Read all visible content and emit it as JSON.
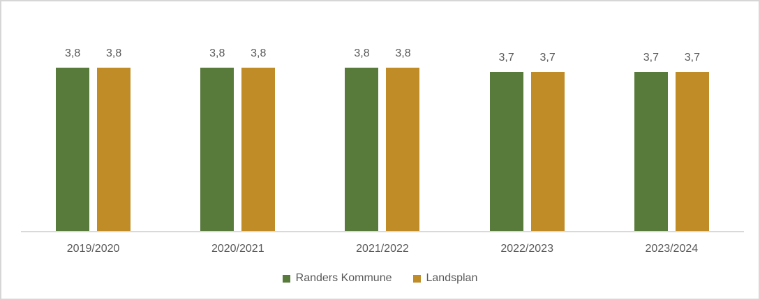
{
  "chart": {
    "background_color": "#ffffff",
    "border_color": "#d6d6d6",
    "axis_line_color": "#d9d9d9",
    "text_color": "#595959"
  },
  "chart_data": {
    "type": "bar",
    "title": "",
    "xlabel": "",
    "ylabel": "",
    "grid": false,
    "y_axis_visible": false,
    "value_labels_visible": true,
    "legend_position": "bottom",
    "categories": [
      "2019/2020",
      "2020/2021",
      "2021/2022",
      "2022/2023",
      "2023/2024"
    ],
    "series": [
      {
        "name": "Randers Kommune",
        "color": "#587a3b",
        "values": [
          3.8,
          3.8,
          3.8,
          3.7,
          3.7
        ],
        "labels": [
          "3,8",
          "3,8",
          "3,8",
          "3,7",
          "3,7"
        ]
      },
      {
        "name": "Landsplan",
        "color": "#bf8c28",
        "values": [
          3.8,
          3.8,
          3.8,
          3.7,
          3.7
        ],
        "labels": [
          "3,8",
          "3,8",
          "3,8",
          "3,7",
          "3,7"
        ]
      }
    ]
  }
}
